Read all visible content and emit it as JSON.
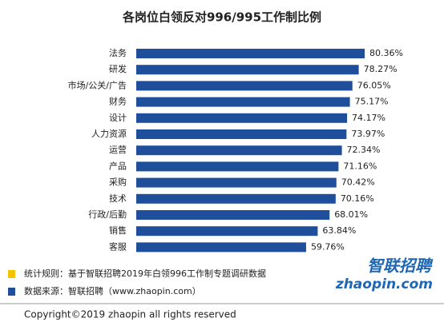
{
  "chart_data": {
    "type": "hbar",
    "title": "各岗位白领反对996/995工作制比例",
    "categories": [
      "法务",
      "研发",
      "市场/公关/广告",
      "财务",
      "设计",
      "人力资源",
      "运营",
      "产品",
      "采购",
      "技术",
      "行政/后勤",
      "销售",
      "客服"
    ],
    "values": [
      80.36,
      78.27,
      76.05,
      75.17,
      74.17,
      73.97,
      72.34,
      71.16,
      70.42,
      70.16,
      68.01,
      63.84,
      59.76
    ],
    "value_labels": [
      "80.36%",
      "78.27%",
      "76.05%",
      "75.17%",
      "74.17%",
      "73.97%",
      "72.34%",
      "71.16%",
      "70.42%",
      "70.16%",
      "68.01%",
      "63.84%",
      "59.76%"
    ],
    "color": "#1f4e9a",
    "notes": [
      {
        "text": "统计规则：基于智联招聘2019年白领996工作制专题调研数据",
        "color": "#f5c400"
      },
      {
        "text": "数据来源：智联招聘（www.zhaopin.com）",
        "color": "#1f4e9a"
      }
    ],
    "logo": [
      "智联招聘",
      "zhaopin.com"
    ],
    "copyright": "Copyright©2019 zhaopin all rights reserved"
  }
}
